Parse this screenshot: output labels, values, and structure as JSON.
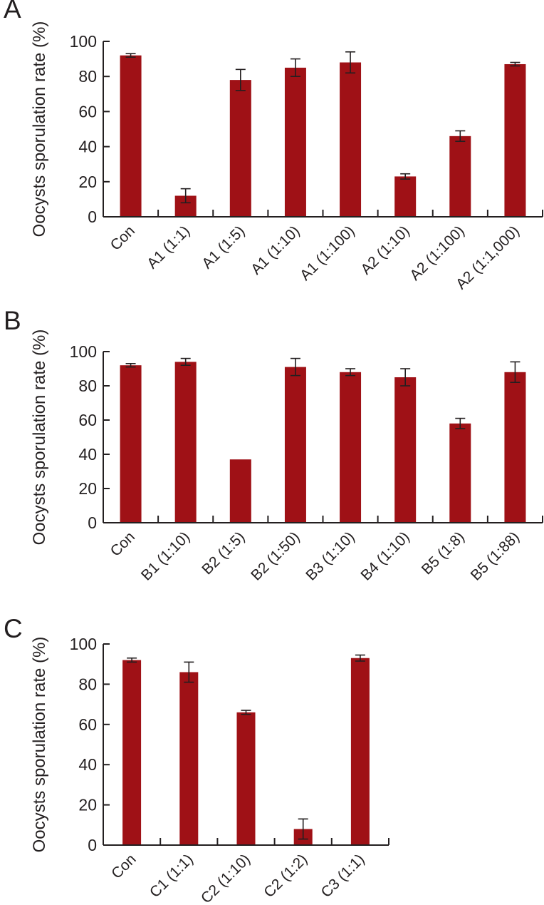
{
  "figure": {
    "background": "#ffffff",
    "text_color": "#231F20"
  },
  "chart_data": [
    {
      "type": "bar",
      "panel_label": "A",
      "title": "",
      "xlabel": "",
      "ylabel": "Oocysts sporulation rate (%)",
      "ylim": [
        0,
        100
      ],
      "yticks": [
        0,
        20,
        40,
        60,
        80,
        100
      ],
      "grid": false,
      "bar_color": "#9F1116",
      "axis_color": "#231F20",
      "categories": [
        "Con",
        "A1 (1:1)",
        "A1 (1:5)",
        "A1 (1:10)",
        "A1 (1:100)",
        "A2 (1:10)",
        "A2 (1:100)",
        "A2 (1:1,000)"
      ],
      "values": [
        92,
        12,
        78,
        85,
        88,
        23,
        46,
        87
      ],
      "errors": [
        1,
        4,
        6,
        5,
        6,
        1.5,
        3,
        1
      ]
    },
    {
      "type": "bar",
      "panel_label": "B",
      "title": "",
      "xlabel": "",
      "ylabel": "Oocysts sporulation rate (%)",
      "ylim": [
        0,
        100
      ],
      "yticks": [
        0,
        20,
        40,
        60,
        80,
        100
      ],
      "grid": false,
      "bar_color": "#9F1116",
      "axis_color": "#231F20",
      "categories": [
        "Con",
        "B1 (1:10)",
        "B2 (1:5)",
        "B2 (1:50)",
        "B3 (1:10)",
        "B4 (1:10)",
        "B5 (1:8)",
        "B5 (1:88)"
      ],
      "values": [
        92,
        94,
        37,
        91,
        88,
        85,
        58,
        88
      ],
      "errors": [
        1,
        2,
        0,
        5,
        2,
        5,
        3,
        6
      ]
    },
    {
      "type": "bar",
      "panel_label": "C",
      "title": "",
      "xlabel": "",
      "ylabel": "Oocysts sporulation rate (%)",
      "ylim": [
        0,
        100
      ],
      "yticks": [
        0,
        20,
        40,
        60,
        80,
        100
      ],
      "grid": false,
      "bar_color": "#9F1116",
      "axis_color": "#231F20",
      "categories": [
        "Con",
        "C1 (1:1)",
        "C2 (1:10)",
        "C2 (1:2)",
        "C3 (1:1)"
      ],
      "values": [
        92,
        86,
        66,
        8,
        93
      ],
      "errors": [
        1,
        5,
        1,
        5,
        1.5
      ]
    }
  ]
}
